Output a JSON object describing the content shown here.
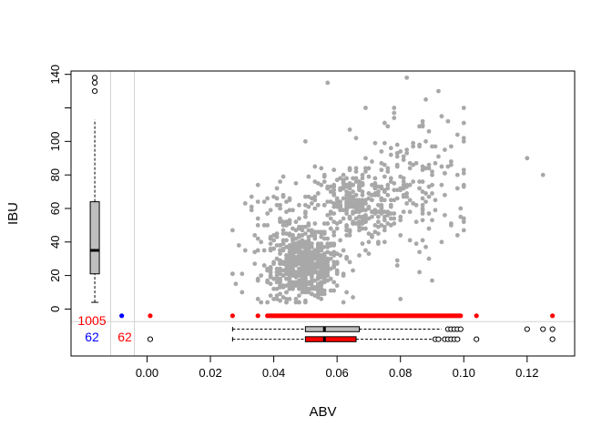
{
  "chart_data": {
    "type": "scatter",
    "title": "",
    "xlabel": "ABV",
    "ylabel": "IBU",
    "xlim": [
      -0.024,
      0.135
    ],
    "ylim": [
      -28,
      142
    ],
    "x_ticks": [
      0.0,
      0.02,
      0.04,
      0.06,
      0.08,
      0.1,
      0.12
    ],
    "x_tick_labels": [
      "0.00",
      "0.02",
      "0.04",
      "0.06",
      "0.08",
      "0.10",
      "0.12"
    ],
    "y_ticks": [
      0,
      20,
      40,
      60,
      80,
      100,
      140
    ],
    "y_tick_labels": [
      "0",
      "20",
      "40",
      "60",
      "80",
      "100",
      "140"
    ],
    "grid": false,
    "reference_lines": {
      "ibu": -7.5,
      "abv": -0.004
    },
    "colors": {
      "points": "#a8a8a8",
      "missing_ibu": "#ff0000",
      "missing_both": "#0000ff",
      "box_fill": "#bebebe",
      "box_fill_red": "#ff0000",
      "reference": "#d3d3d3"
    },
    "series": [
      {
        "kind": "points",
        "clusters": [
          {
            "cx": 0.05,
            "cy": 25,
            "sx": 0.0055,
            "sy": 9,
            "n": 560
          },
          {
            "cx": 0.065,
            "cy": 62,
            "sx": 0.007,
            "sy": 12,
            "n": 300
          },
          {
            "cx": 0.085,
            "cy": 75,
            "sx": 0.01,
            "sy": 22,
            "n": 160
          },
          {
            "cx": 0.045,
            "cy": 45,
            "sx": 0.007,
            "sy": 14,
            "n": 120
          }
        ],
        "extra": [
          [
            0.027,
            21
          ],
          [
            0.028,
            15
          ],
          [
            0.03,
            10
          ],
          [
            0.035,
            18
          ],
          [
            0.05,
            100
          ],
          [
            0.057,
            135
          ],
          [
            0.082,
            138
          ],
          [
            0.088,
            125
          ],
          [
            0.092,
            130
          ],
          [
            0.12,
            90
          ],
          [
            0.125,
            80
          ],
          [
            0.1,
            100
          ],
          [
            0.098,
            80
          ],
          [
            0.04,
            6
          ],
          [
            0.042,
            5
          ]
        ]
      },
      {
        "kind": "missing-ibu",
        "y": -4,
        "x_range": [
          0.038,
          0.099
        ],
        "n": 130,
        "extra_x": [
          0.001,
          0.027,
          0.035,
          0.104,
          0.128
        ]
      },
      {
        "kind": "missing-both",
        "x": -0.008,
        "y": -4
      }
    ],
    "counts": [
      {
        "label": "1005",
        "color": "red"
      },
      {
        "label": "62",
        "color": "blue"
      },
      {
        "label": "62",
        "color": "red"
      }
    ],
    "boxplots": {
      "ibu": {
        "whisker_lo": 4,
        "q1": 21,
        "median": 35,
        "q3": 64,
        "whisker_hi": 113,
        "outliers": [
          130,
          135,
          138
        ]
      },
      "abv_all": {
        "y": -12,
        "whisker_lo": 0.027,
        "q1": 0.05,
        "median": 0.056,
        "q3": 0.067,
        "whisker_hi": 0.093,
        "outliers": [
          0.095,
          0.096,
          0.097,
          0.098,
          0.099,
          0.12,
          0.125,
          0.128
        ]
      },
      "abv_missing_ibu": {
        "y": -18,
        "whisker_lo": 0.027,
        "q1": 0.05,
        "median": 0.056,
        "q3": 0.066,
        "whisker_hi": 0.09,
        "outliers": [
          0.091,
          0.092,
          0.094,
          0.095,
          0.096,
          0.097,
          0.098,
          0.104,
          0.128
        ]
      },
      "missing_both_abv": {
        "y": -18,
        "x": 0.001
      }
    }
  }
}
